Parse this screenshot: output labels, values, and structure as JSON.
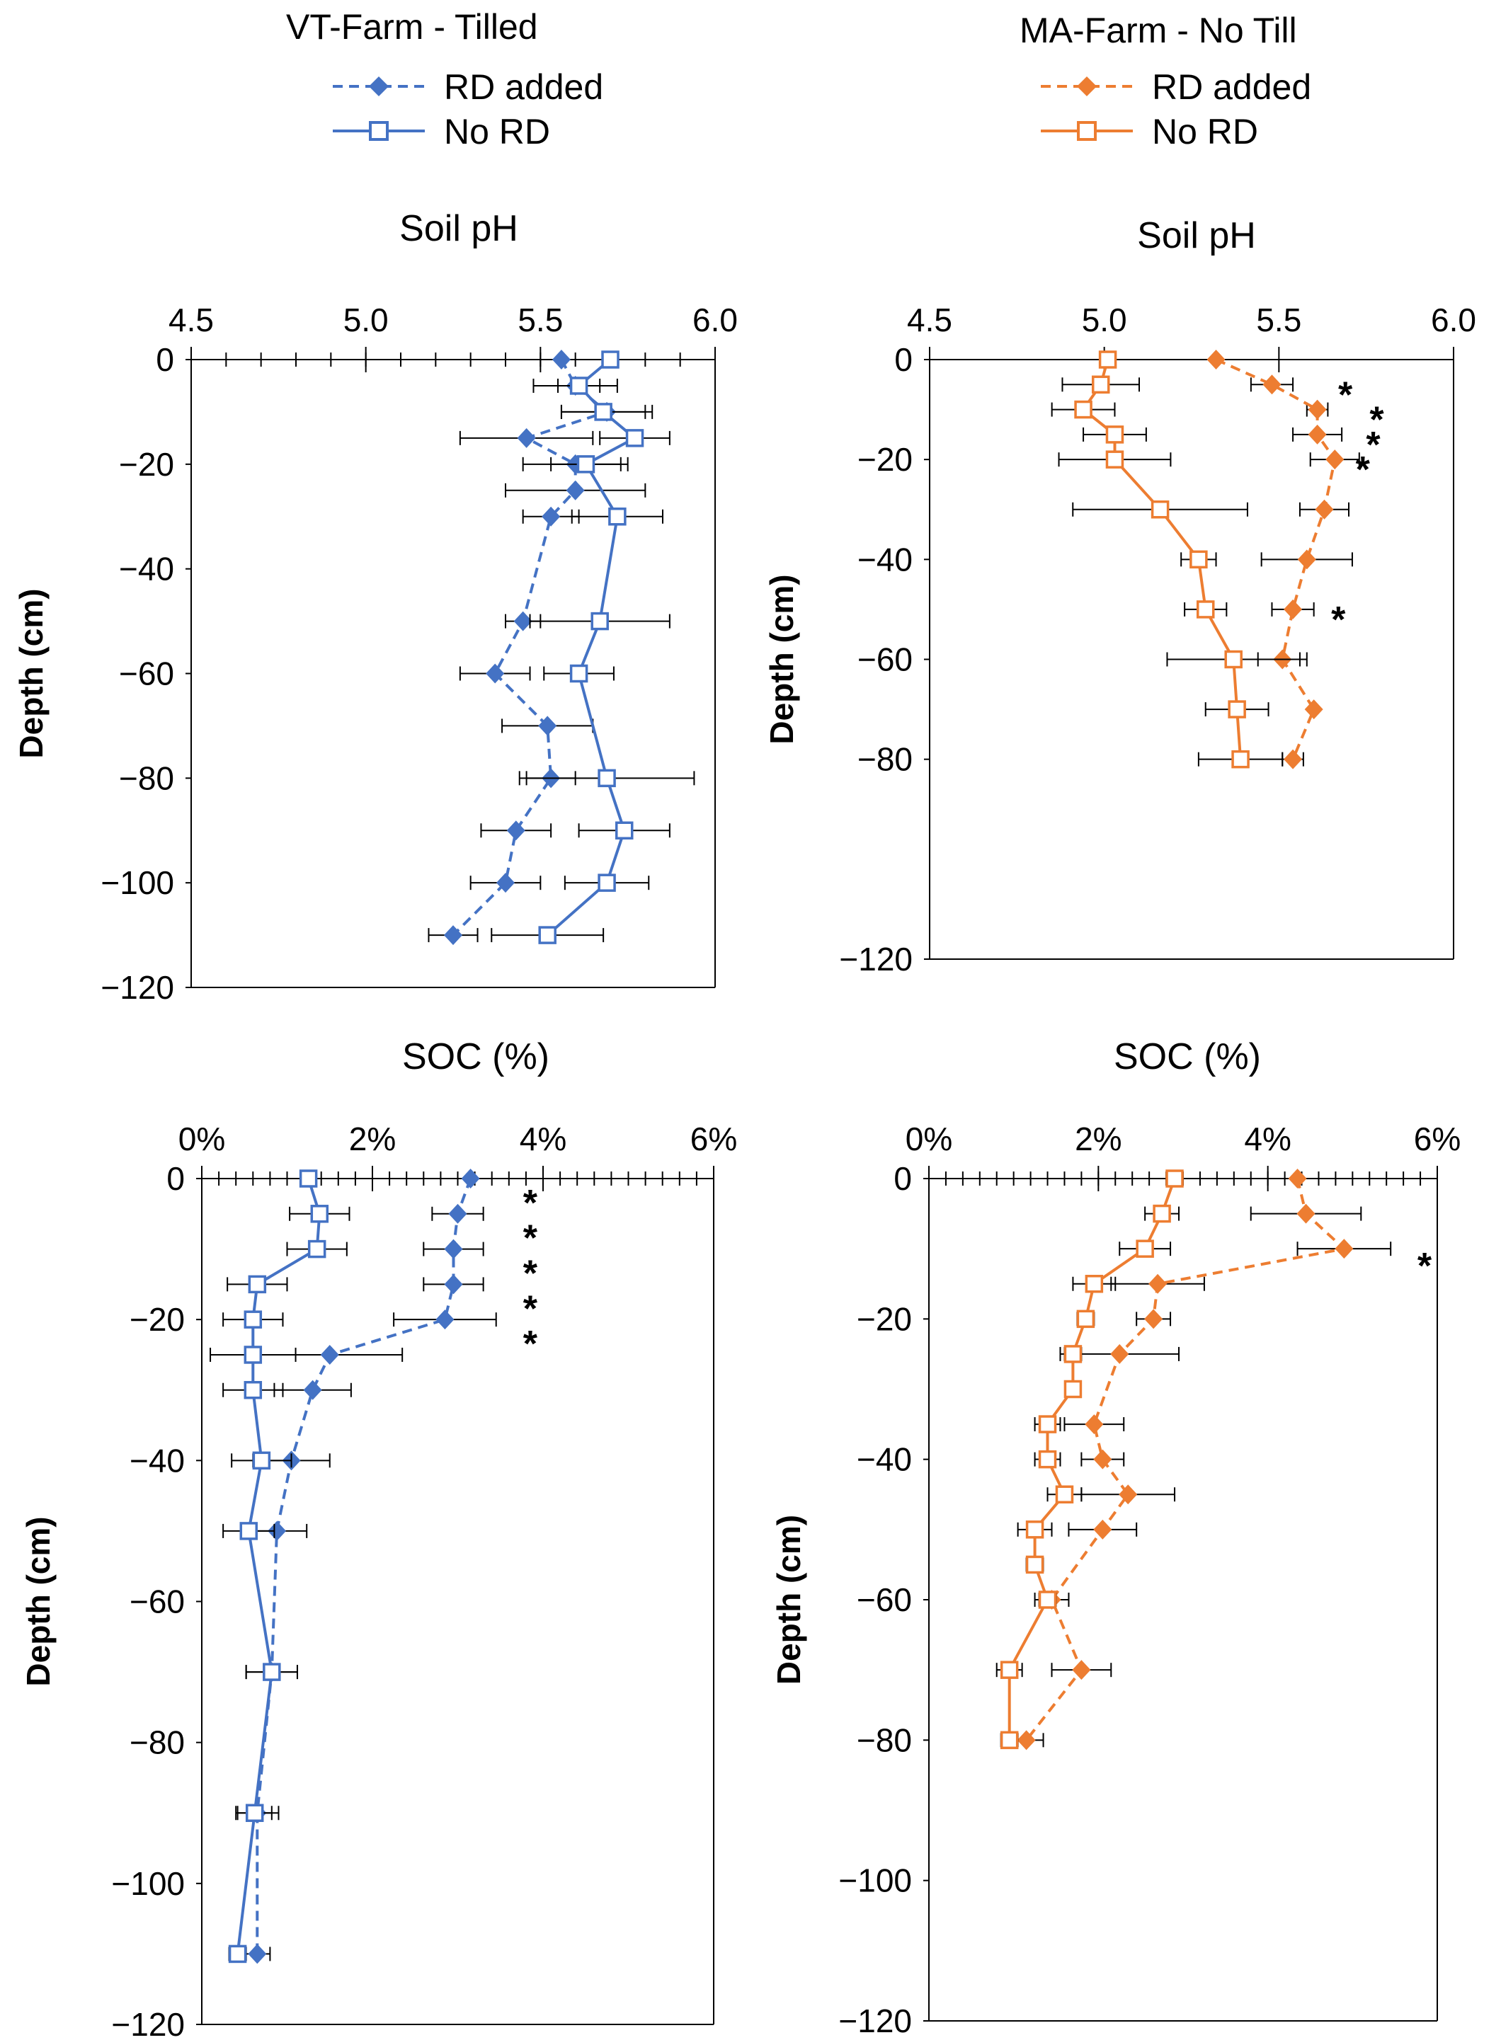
{
  "colors": {
    "vt": "#4472C4",
    "ma": "#ED7D31",
    "axis": "#000000",
    "errbar": "#000000"
  },
  "legends": [
    {
      "header": "VT-Farm - Tilled",
      "entries": [
        "RD added",
        "No RD"
      ]
    },
    {
      "header": "MA-Farm - No Till",
      "entries": [
        "RD added",
        "No RD"
      ]
    }
  ],
  "chart_data": [
    {
      "id": "vt-ph",
      "type": "line",
      "title": "Soil pH",
      "ylabel": "Depth (cm)",
      "xlim": [
        4.5,
        6.0
      ],
      "ylim": [
        -120,
        0
      ],
      "xticks": [
        4.5,
        5.0,
        5.5,
        6.0
      ],
      "xtick_labels": [
        "4.5",
        "5.0",
        "5.5",
        "6.0"
      ],
      "xminor": 0.1,
      "yticks": [
        0,
        -20,
        -40,
        -60,
        -80,
        -100,
        -120
      ],
      "ytick_labels": [
        "0",
        "−20",
        "−40",
        "−60",
        "−80",
        "−100",
        "−120"
      ],
      "series": [
        {
          "name": "RD added",
          "style": "dashed-diamond",
          "color": "#4472C4",
          "depth": [
            0,
            -5,
            -10,
            -15,
            -20,
            -25,
            -30,
            -50,
            -60,
            -70,
            -80,
            -90,
            -100,
            -110
          ],
          "values": [
            5.56,
            5.6,
            5.69,
            5.46,
            5.6,
            5.6,
            5.53,
            5.45,
            5.37,
            5.52,
            5.53,
            5.43,
            5.4,
            5.25
          ],
          "err": [
            0,
            0.12,
            0.13,
            0.19,
            0.15,
            0.2,
            0.08,
            0.05,
            0.1,
            0.13,
            0.07,
            0.1,
            0.1,
            0.07
          ]
        },
        {
          "name": "No RD",
          "style": "solid-square",
          "color": "#4472C4",
          "depth": [
            0,
            -5,
            -10,
            -15,
            -20,
            -30,
            -50,
            -60,
            -80,
            -90,
            -100,
            -110
          ],
          "values": [
            5.7,
            5.61,
            5.68,
            5.77,
            5.63,
            5.72,
            5.67,
            5.61,
            5.69,
            5.74,
            5.69,
            5.52
          ],
          "err": [
            0,
            0.06,
            0.12,
            0.1,
            0.1,
            0.13,
            0.2,
            0.1,
            0.25,
            0.13,
            0.12,
            0.16
          ]
        }
      ],
      "annotations": []
    },
    {
      "id": "ma-ph",
      "type": "line",
      "title": "Soil pH",
      "ylabel": "Depth (cm)",
      "xlim": [
        4.5,
        6.0
      ],
      "ylim": [
        -120,
        0
      ],
      "xticks": [
        4.5,
        5.0,
        5.5,
        6.0
      ],
      "xtick_labels": [
        "4.5",
        "5.0",
        "5.5",
        "6.0"
      ],
      "xminor": null,
      "yticks": [
        0,
        -20,
        -40,
        -60,
        -80,
        -120
      ],
      "ytick_labels": [
        "0",
        "−20",
        "−40",
        "−60",
        "−80",
        "−120"
      ],
      "series": [
        {
          "name": "RD added",
          "style": "dashed-diamond",
          "color": "#ED7D31",
          "depth": [
            0,
            -5,
            -10,
            -15,
            -20,
            -30,
            -40,
            -50,
            -60,
            -70,
            -80
          ],
          "values": [
            5.32,
            5.48,
            5.61,
            5.61,
            5.66,
            5.63,
            5.58,
            5.54,
            5.51,
            5.6,
            5.54
          ],
          "err": [
            0,
            0.06,
            0.03,
            0.07,
            0.07,
            0.07,
            0.13,
            0.06,
            0.07,
            0,
            0.03
          ]
        },
        {
          "name": "No RD",
          "style": "solid-square",
          "color": "#ED7D31",
          "depth": [
            0,
            -5,
            -10,
            -15,
            -20,
            -30,
            -40,
            -50,
            -60,
            -70,
            -80
          ],
          "values": [
            5.01,
            4.99,
            4.94,
            5.03,
            5.03,
            5.16,
            5.27,
            5.29,
            5.37,
            5.38,
            5.39
          ],
          "err": [
            0,
            0.11,
            0.09,
            0.09,
            0.16,
            0.25,
            0.05,
            0.06,
            0.19,
            0.09,
            0.12
          ]
        }
      ],
      "annotations": [
        {
          "text": "*",
          "at_value": 5.69,
          "depth": -5
        },
        {
          "text": "*",
          "at_value": 5.78,
          "depth": -10
        },
        {
          "text": "*",
          "at_value": 5.77,
          "depth": -15
        },
        {
          "text": "*",
          "at_value": 5.74,
          "depth": -20
        },
        {
          "text": "*",
          "at_value": 5.67,
          "depth": -50
        }
      ]
    },
    {
      "id": "vt-soc",
      "type": "line",
      "title": "SOC (%)",
      "ylabel": "Depth (cm)",
      "xlim": [
        0,
        6
      ],
      "ylim": [
        -120,
        0
      ],
      "xticks": [
        0,
        2,
        4,
        6
      ],
      "xtick_labels": [
        "0%",
        "2%",
        "4%",
        "6%"
      ],
      "xminor": 0.2,
      "yticks": [
        0,
        -20,
        -40,
        -60,
        -80,
        -100,
        -120
      ],
      "ytick_labels": [
        "0",
        "−20",
        "−40",
        "−60",
        "−80",
        "−100",
        "−120"
      ],
      "series": [
        {
          "name": "RD added",
          "style": "dashed-diamond",
          "color": "#4472C4",
          "depth": [
            0,
            -5,
            -10,
            -15,
            -20,
            -25,
            -30,
            -40,
            -50,
            -70,
            -90,
            -110
          ],
          "values": [
            3.15,
            3.0,
            2.95,
            2.95,
            2.85,
            1.5,
            1.3,
            1.05,
            0.88,
            0.82,
            0.65,
            0.65
          ],
          "err": [
            0,
            0.3,
            0.35,
            0.35,
            0.6,
            0.85,
            0.45,
            0.45,
            0.35,
            0.3,
            0.25,
            0.15
          ]
        },
        {
          "name": "No RD",
          "style": "solid-square",
          "color": "#4472C4",
          "depth": [
            0,
            -5,
            -10,
            -15,
            -20,
            -25,
            -30,
            -40,
            -50,
            -70,
            -90,
            -110
          ],
          "values": [
            1.25,
            1.38,
            1.35,
            0.65,
            0.6,
            0.6,
            0.6,
            0.7,
            0.55,
            0.82,
            0.62,
            0.42
          ],
          "err": [
            0,
            0.35,
            0.35,
            0.35,
            0.35,
            0.5,
            0.35,
            0.35,
            0.3,
            0.3,
            0.2,
            0.1
          ]
        }
      ],
      "annotations": [
        {
          "text": "*",
          "at_value": 3.85,
          "depth": -2
        },
        {
          "text": "*",
          "at_value": 3.85,
          "depth": -7
        },
        {
          "text": "*",
          "at_value": 3.85,
          "depth": -12
        },
        {
          "text": "*",
          "at_value": 3.85,
          "depth": -17
        },
        {
          "text": "*",
          "at_value": 3.85,
          "depth": -22
        }
      ]
    },
    {
      "id": "ma-soc",
      "type": "line",
      "title": "SOC (%)",
      "ylabel": "Depth (cm)",
      "xlim": [
        0,
        6
      ],
      "ylim": [
        -120,
        0
      ],
      "xticks": [
        0,
        2,
        4,
        6
      ],
      "xtick_labels": [
        "0%",
        "2%",
        "4%",
        "6%"
      ],
      "xminor": 0.2,
      "yticks": [
        0,
        -20,
        -40,
        -60,
        -80,
        -100,
        -120
      ],
      "ytick_labels": [
        "0",
        "−20",
        "−40",
        "−60",
        "−80",
        "−100",
        "−120"
      ],
      "series": [
        {
          "name": "RD added",
          "style": "dashed-diamond",
          "color": "#ED7D31",
          "depth": [
            0,
            -5,
            -10,
            -15,
            -20,
            -25,
            -35,
            -40,
            -45,
            -50,
            -60,
            -70,
            -80
          ],
          "values": [
            4.35,
            4.45,
            4.9,
            2.7,
            2.65,
            2.25,
            1.95,
            2.05,
            2.35,
            2.05,
            1.45,
            1.8,
            1.15
          ],
          "err": [
            0,
            0.65,
            0.55,
            0.55,
            0.2,
            0.7,
            0.35,
            0.25,
            0.55,
            0.4,
            0.2,
            0.35,
            0.2
          ]
        },
        {
          "name": "No RD",
          "style": "solid-square",
          "color": "#ED7D31",
          "depth": [
            0,
            -5,
            -10,
            -15,
            -20,
            -25,
            -30,
            -35,
            -40,
            -45,
            -50,
            -55,
            -60,
            -70,
            -80
          ],
          "values": [
            2.9,
            2.75,
            2.55,
            1.95,
            1.85,
            1.7,
            1.7,
            1.4,
            1.4,
            1.6,
            1.25,
            1.25,
            1.4,
            0.95,
            0.95
          ],
          "err": [
            0,
            0.2,
            0.3,
            0.25,
            0.1,
            0.1,
            0.05,
            0.15,
            0.15,
            0.2,
            0.2,
            0.1,
            0.1,
            0.15,
            0.1
          ]
        }
      ],
      "annotations": [
        {
          "text": "*",
          "at_value": 5.85,
          "depth": -11
        }
      ]
    }
  ]
}
